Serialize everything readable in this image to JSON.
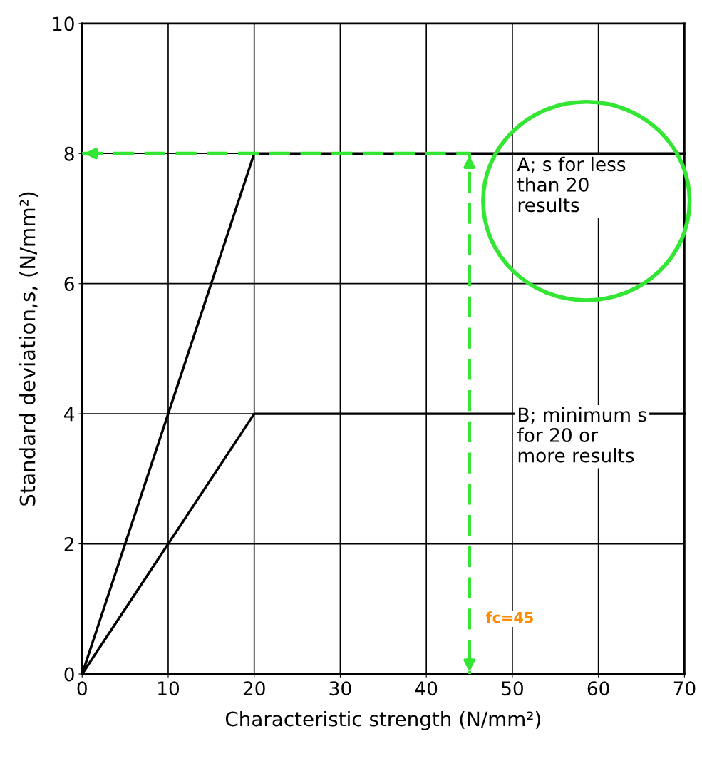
{
  "chart_data": {
    "type": "line",
    "xlabel": "Characteristic strength (N/mm²)",
    "ylabel": "Standard deviation,s, (N/mm²)",
    "xlim": [
      0,
      70
    ],
    "ylim": [
      0,
      10
    ],
    "xticks": [
      0,
      10,
      20,
      30,
      40,
      50,
      60,
      70
    ],
    "yticks": [
      0,
      2,
      4,
      6,
      8,
      10
    ],
    "grid": true,
    "marker": "none",
    "series": [
      {
        "x": [
          0,
          20,
          70
        ],
        "values": [
          0,
          8,
          8
        ],
        "color": "#000000",
        "line_style": "solid"
      },
      {
        "x": [
          0,
          20,
          70
        ],
        "values": [
          0,
          4,
          4
        ],
        "color": "#000000",
        "line_style": "solid"
      },
      {
        "x": [
          0,
          45,
          45
        ],
        "values": [
          8,
          8,
          0
        ],
        "color": "#33e633",
        "line_style": "dashed"
      }
    ],
    "annotations": [
      "A; s for less\nthan 20\nresults",
      "B; minimum s\nfor 20 or\nmore results",
      "fc=45"
    ]
  }
}
